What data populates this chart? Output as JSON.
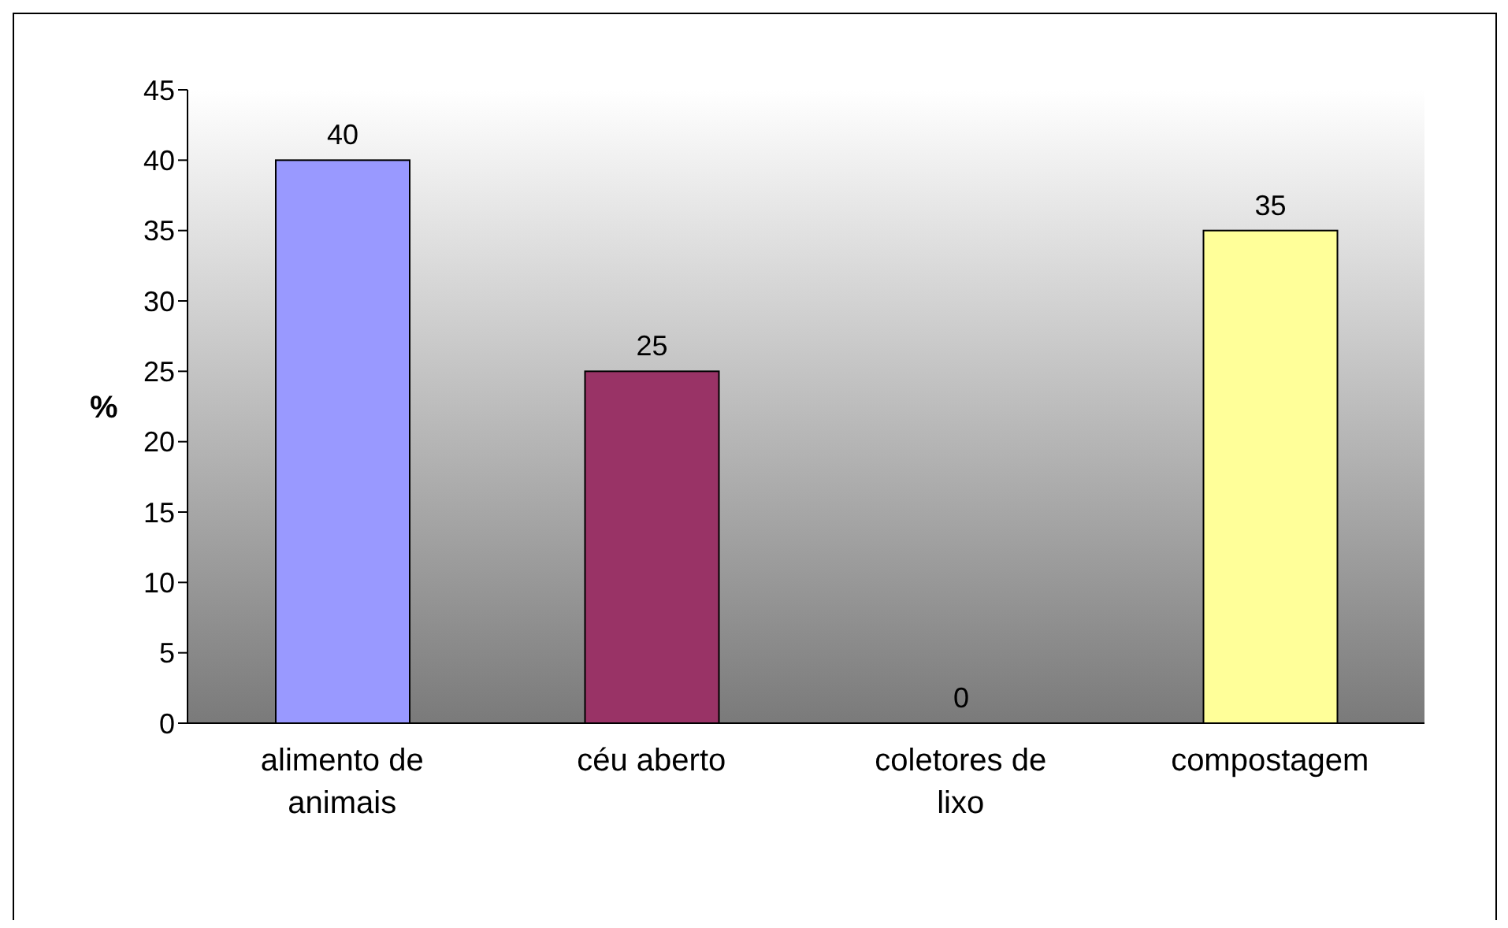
{
  "chart_data": {
    "type": "bar",
    "ylabel": "%",
    "categories": [
      "alimento de animais",
      "céu aberto",
      "coletores de lixo",
      "compostagem"
    ],
    "values": [
      40,
      25,
      0,
      35
    ],
    "colors": [
      "#9999ff",
      "#993366",
      "#ff99cc",
      "#ffff99"
    ],
    "ylim": [
      0,
      45
    ],
    "yticks": [
      0,
      5,
      10,
      15,
      20,
      25,
      30,
      35,
      40,
      45
    ],
    "data_labels": true,
    "grid": false
  }
}
